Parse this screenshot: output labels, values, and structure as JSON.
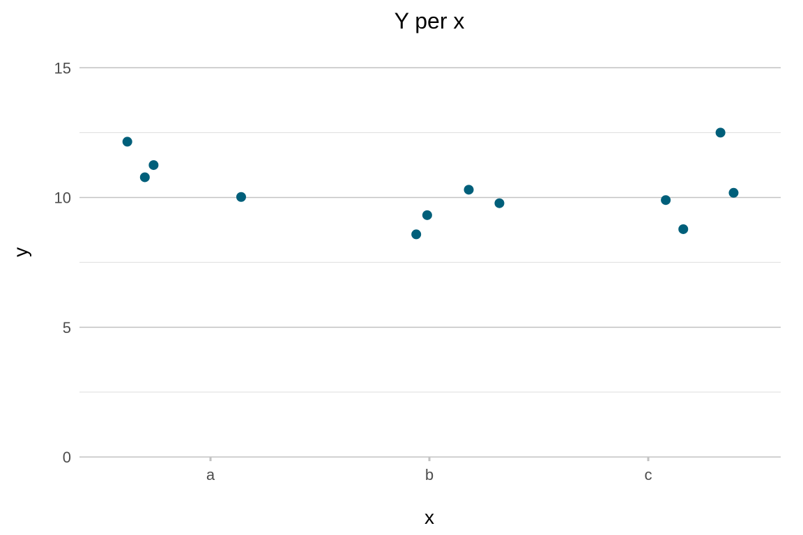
{
  "chart_data": {
    "type": "scatter",
    "title": "Y per x",
    "xlabel": "x",
    "ylabel": "y",
    "categories": [
      "a",
      "b",
      "c"
    ],
    "ylim": [
      0,
      16
    ],
    "y_ticks": [
      0,
      5,
      10,
      15
    ],
    "y_minor_ticks": [
      2.5,
      7.5,
      12.5
    ],
    "grid": true,
    "legend": "none",
    "point_color": "#005f7a",
    "grid_color": "#c2c2c2",
    "minor_grid_color": "#dddddd",
    "points": [
      {
        "category": "a",
        "jitter": -0.38,
        "y": 12.15
      },
      {
        "category": "a",
        "jitter": -0.3,
        "y": 10.78
      },
      {
        "category": "a",
        "jitter": -0.26,
        "y": 11.25
      },
      {
        "category": "a",
        "jitter": 0.14,
        "y": 10.02
      },
      {
        "category": "b",
        "jitter": -0.06,
        "y": 8.58
      },
      {
        "category": "b",
        "jitter": -0.01,
        "y": 9.32
      },
      {
        "category": "b",
        "jitter": 0.18,
        "y": 10.3
      },
      {
        "category": "b",
        "jitter": 0.32,
        "y": 9.78
      },
      {
        "category": "c",
        "jitter": 0.08,
        "y": 9.9
      },
      {
        "category": "c",
        "jitter": 0.16,
        "y": 8.78
      },
      {
        "category": "c",
        "jitter": 0.33,
        "y": 12.5
      },
      {
        "category": "c",
        "jitter": 0.39,
        "y": 10.18
      }
    ]
  }
}
